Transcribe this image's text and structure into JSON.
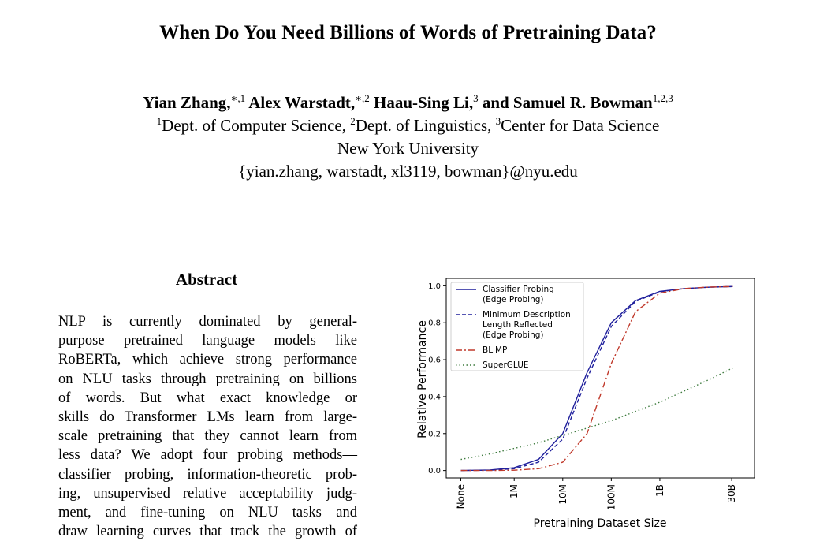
{
  "paper": {
    "title": "When Do You Need Billions of Words of Pretraining Data?",
    "authors": [
      {
        "name": "Yian Zhang,",
        "sup": "∗,1"
      },
      {
        "name": "Alex Warstadt,",
        "sup": "∗,2"
      },
      {
        "name": "Haau-Sing Li,",
        "sup": "3"
      },
      {
        "name": "and Samuel R. Bowman",
        "sup": "1,2,3"
      }
    ],
    "affiliations": [
      {
        "sup": "1",
        "text": "Dept. of Computer Science, "
      },
      {
        "sup": "2",
        "text": "Dept. of Linguistics, "
      },
      {
        "sup": "3",
        "text": "Center for Data Science"
      }
    ],
    "institution": "New York University",
    "emails": "{yian.zhang, warstadt, xl3119, bowman}@nyu.edu",
    "abstract_heading": "Abstract",
    "abstract_lines": [
      "NLP is currently dominated by general-",
      "purpose pretrained language models like",
      "RoBERTa, which achieve strong performance",
      "on NLU tasks through pretraining on billions",
      "of words.  But what exact knowledge or",
      "skills do Transformer LMs learn from large-",
      "scale pretraining that they cannot learn from",
      "less data?  We adopt four probing methods—",
      "classifier probing, information-theoretic prob-",
      "ing, unsupervised relative acceptability judg-",
      "ment, and fine-tuning on NLU tasks—and",
      "draw learning curves that track the growth of"
    ]
  },
  "chart_data": {
    "type": "line",
    "xlabel": "Pretraining Dataset Size",
    "ylabel": "Relative Performance",
    "x_ticks": [
      "None",
      "1M",
      "10M",
      "100M",
      "1B",
      "30B"
    ],
    "x_tick_positions_log10_words": [
      null,
      6,
      7,
      8,
      9,
      10.48
    ],
    "x_domain_log10": [
      4.6,
      10.95
    ],
    "ylim": [
      -0.04,
      1.04
    ],
    "y_ticks": [
      "0.0",
      "0.2",
      "0.4",
      "0.6",
      "0.8",
      "1.0"
    ],
    "legend_position": "upper left",
    "series": [
      {
        "name": "Classifier Probing\n(Edge Probing)",
        "color": "#1f1f9c",
        "dash": "solid",
        "x": [
          4.9,
          5.5,
          6.0,
          6.5,
          7.0,
          7.5,
          8.0,
          8.5,
          9.0,
          9.5,
          10.0,
          10.5
        ],
        "y": [
          0.0,
          0.003,
          0.015,
          0.06,
          0.2,
          0.53,
          0.8,
          0.92,
          0.97,
          0.985,
          0.992,
          0.996
        ]
      },
      {
        "name": "Minimum Description\nLength Reflected\n(Edge Probing)",
        "color": "#1f1f9c",
        "dash": "dashed",
        "x": [
          4.9,
          5.5,
          6.0,
          6.5,
          7.0,
          7.5,
          8.0,
          8.5,
          9.0,
          9.5,
          10.0,
          10.5
        ],
        "y": [
          0.0,
          0.002,
          0.01,
          0.045,
          0.17,
          0.5,
          0.78,
          0.915,
          0.968,
          0.985,
          0.992,
          0.996
        ]
      },
      {
        "name": "BLiMP",
        "color": "#c0392b",
        "dash": "dashdot",
        "x": [
          4.9,
          5.5,
          6.0,
          6.5,
          7.0,
          7.5,
          8.0,
          8.5,
          9.0,
          9.5,
          10.0,
          10.5
        ],
        "y": [
          0.0,
          0.0,
          0.002,
          0.01,
          0.045,
          0.2,
          0.58,
          0.86,
          0.96,
          0.985,
          0.993,
          0.996
        ]
      },
      {
        "name": "SuperGLUE",
        "color": "#3d7a3d",
        "dash": "dotted",
        "x": [
          4.9,
          5.5,
          6.0,
          6.5,
          7.0,
          7.5,
          8.0,
          8.5,
          9.0,
          9.5,
          10.0,
          10.5
        ],
        "y": [
          0.06,
          0.09,
          0.12,
          0.15,
          0.19,
          0.23,
          0.27,
          0.32,
          0.37,
          0.43,
          0.49,
          0.555
        ]
      }
    ]
  }
}
